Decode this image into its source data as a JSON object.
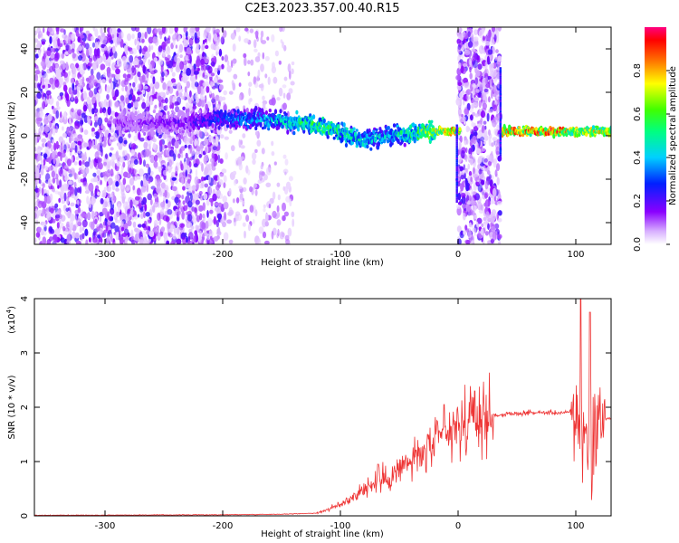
{
  "title": "C2E3.2023.357.00.40.R15",
  "colors": {
    "spec_low": "#8a00ff",
    "spec_mid": "#00ff80",
    "spec_high": "#ff0000",
    "snr_line": "#ee3333"
  },
  "chart_data": [
    {
      "type": "heatmap",
      "name": "spectrogram",
      "xlabel": "Height of straight line (km)",
      "ylabel": "Frequency (Hz)",
      "xlim": [
        -360,
        130
      ],
      "ylim": [
        -50,
        50
      ],
      "xticks": [
        -300,
        -200,
        -100,
        0,
        100
      ],
      "yticks": [
        -40,
        -20,
        0,
        20,
        40
      ],
      "colorbar": {
        "label": "Normalized spectral amplitude",
        "range": [
          0,
          1
        ],
        "ticks": [
          0.0,
          0.2,
          0.4,
          0.6,
          0.8
        ]
      },
      "features": {
        "noise_band_1_x": [
          -360,
          -200
        ],
        "sparse_band_x": [
          -200,
          -140
        ],
        "noise_band_2_x": [
          0,
          36
        ],
        "signal_track": [
          {
            "x": -270,
            "f": 6,
            "amp": 0.15
          },
          {
            "x": -230,
            "f": 6,
            "amp": 0.2
          },
          {
            "x": -200,
            "f": 8,
            "amp": 0.3
          },
          {
            "x": -150,
            "f": 7,
            "amp": 0.45
          },
          {
            "x": -120,
            "f": 5,
            "amp": 0.55
          },
          {
            "x": -100,
            "f": 2,
            "amp": 0.5
          },
          {
            "x": -80,
            "f": -2,
            "amp": 0.45
          },
          {
            "x": -60,
            "f": 0,
            "amp": 0.4
          },
          {
            "x": -30,
            "f": 2,
            "amp": 0.6
          },
          {
            "x": -10,
            "f": 2,
            "amp": 0.75
          },
          {
            "x": 40,
            "f": 2,
            "amp": 0.8
          },
          {
            "x": 80,
            "f": 2,
            "amp": 0.85
          },
          {
            "x": 110,
            "f": 2,
            "amp": 0.7
          },
          {
            "x": 130,
            "f": 2,
            "amp": 0.7
          }
        ]
      }
    },
    {
      "type": "line",
      "name": "snr",
      "xlabel": "Height of straight line (km)",
      "ylabel": "SNR (10 * v/v)",
      "yscale_label": "(x10",
      "yscale_exp": "4",
      "yscale_close": ")",
      "xlim": [
        -360,
        130
      ],
      "ylim": [
        0,
        4
      ],
      "xticks": [
        -300,
        -200,
        -100,
        0,
        100
      ],
      "yticks": [
        0,
        1,
        2,
        3,
        4
      ],
      "envelope": [
        {
          "x": -360,
          "y": 0.01
        },
        {
          "x": -200,
          "y": 0.02
        },
        {
          "x": -150,
          "y": 0.03
        },
        {
          "x": -120,
          "y": 0.05
        },
        {
          "x": -100,
          "y": 0.2
        },
        {
          "x": -80,
          "y": 0.5
        },
        {
          "x": -60,
          "y": 0.7
        },
        {
          "x": -40,
          "y": 1.0
        },
        {
          "x": -20,
          "y": 1.3
        },
        {
          "x": 0,
          "y": 1.6
        },
        {
          "x": 20,
          "y": 1.8
        },
        {
          "x": 30,
          "y": 1.85
        },
        {
          "x": 60,
          "y": 1.9
        },
        {
          "x": 100,
          "y": 1.9
        },
        {
          "x": 110,
          "y": 1.6
        },
        {
          "x": 120,
          "y": 1.8
        },
        {
          "x": 130,
          "y": 1.8
        }
      ],
      "peaks": [
        {
          "x": -68,
          "y": 0.95
        },
        {
          "x": -26,
          "y": 1.5
        },
        {
          "x": -12,
          "y": 2.05
        },
        {
          "x": 14,
          "y": 2.3
        },
        {
          "x": 104,
          "y": 4.0
        },
        {
          "x": 112,
          "y": 3.75
        }
      ]
    }
  ]
}
